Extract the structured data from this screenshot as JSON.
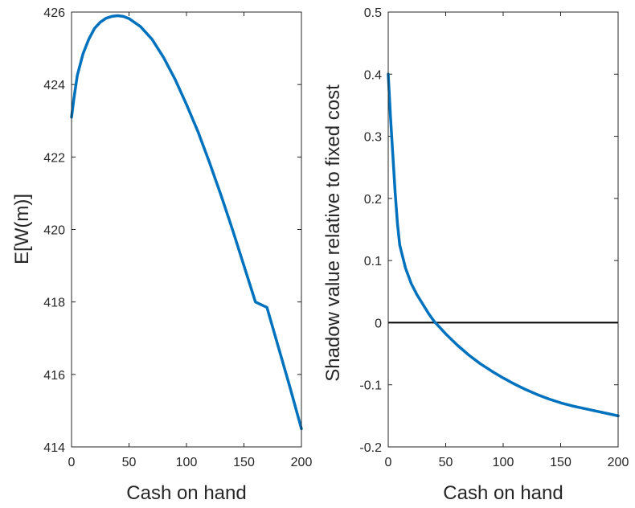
{
  "chart_data": [
    {
      "type": "line",
      "title": "",
      "xlabel": "Cash on hand",
      "ylabel": "E[W(m)]",
      "xlim": [
        0,
        200
      ],
      "ylim": [
        414,
        426
      ],
      "xticks": [
        0,
        50,
        100,
        150,
        200
      ],
      "xtick_labels": [
        "0",
        "50",
        "100",
        "150",
        "200"
      ],
      "yticks": [
        414,
        416,
        418,
        420,
        422,
        424,
        426
      ],
      "ytick_labels": [
        "414",
        "416",
        "418",
        "420",
        "422",
        "424",
        "426"
      ],
      "grid": false,
      "series": [
        {
          "color": "#0072BD",
          "x": [
            0,
            2,
            5,
            10,
            15,
            20,
            25,
            30,
            35,
            40,
            45,
            50,
            60,
            70,
            80,
            90,
            100,
            110,
            120,
            130,
            140,
            150,
            160,
            170,
            180,
            190,
            200
          ],
          "y": [
            423.1,
            423.6,
            424.25,
            424.85,
            425.25,
            425.55,
            425.72,
            425.83,
            425.88,
            425.9,
            425.88,
            425.82,
            425.6,
            425.25,
            424.75,
            424.15,
            423.45,
            422.7,
            421.85,
            420.95,
            420.0,
            419.0,
            418.0,
            417.85,
            416.75,
            415.65,
            414.5
          ]
        }
      ]
    },
    {
      "type": "line",
      "title": "",
      "xlabel": "Cash on hand",
      "ylabel": "Shadow value relative to fixed cost",
      "xlim": [
        0,
        200
      ],
      "ylim": [
        -0.2,
        0.5
      ],
      "xticks": [
        0,
        50,
        100,
        150,
        200
      ],
      "xtick_labels": [
        "0",
        "50",
        "100",
        "150",
        "200"
      ],
      "yticks": [
        -0.2,
        -0.1,
        0,
        0.1,
        0.2,
        0.3,
        0.4,
        0.5
      ],
      "ytick_labels": [
        "-0.2",
        "-0.1",
        "0",
        "0.1",
        "0.2",
        "0.3",
        "0.4",
        "0.5"
      ],
      "grid": false,
      "reference_line": {
        "y": 0,
        "color": "#000000"
      },
      "series": [
        {
          "color": "#0072BD",
          "x": [
            0,
            2,
            4,
            6,
            8,
            10,
            15,
            20,
            25,
            30,
            35,
            40,
            45,
            50,
            60,
            70,
            80,
            90,
            100,
            110,
            120,
            130,
            140,
            150,
            160,
            170,
            180,
            190,
            200
          ],
          "y": [
            0.4,
            0.33,
            0.27,
            0.21,
            0.16,
            0.125,
            0.088,
            0.063,
            0.045,
            0.03,
            0.015,
            0.002,
            -0.008,
            -0.018,
            -0.036,
            -0.052,
            -0.066,
            -0.078,
            -0.089,
            -0.099,
            -0.108,
            -0.116,
            -0.123,
            -0.129,
            -0.134,
            -0.138,
            -0.142,
            -0.146,
            -0.15
          ]
        }
      ]
    }
  ]
}
